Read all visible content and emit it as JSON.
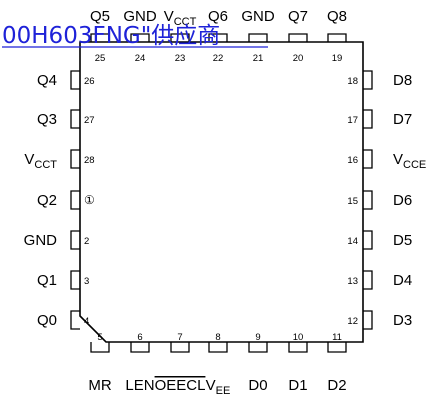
{
  "watermark": {
    "text": "00H603FNG\"供应商",
    "color": "#1e22d8"
  },
  "pin1_marker": "①",
  "pins": {
    "top": [
      {
        "num": "25",
        "name": "Q5"
      },
      {
        "num": "24",
        "name": "GND"
      },
      {
        "num": "23",
        "name": "V",
        "sub": "CCT"
      },
      {
        "num": "22",
        "name": "Q6"
      },
      {
        "num": "21",
        "name": "GND"
      },
      {
        "num": "20",
        "name": "Q7"
      },
      {
        "num": "19",
        "name": "Q8"
      }
    ],
    "left": [
      {
        "num": "26",
        "name": "Q4"
      },
      {
        "num": "27",
        "name": "Q3"
      },
      {
        "num": "28",
        "name": "V",
        "sub": "CCT"
      },
      {
        "num": "1",
        "name": "Q2"
      },
      {
        "num": "2",
        "name": "GND"
      },
      {
        "num": "3",
        "name": "Q1"
      },
      {
        "num": "4",
        "name": "Q0"
      }
    ],
    "right": [
      {
        "num": "18",
        "name": "D8"
      },
      {
        "num": "17",
        "name": "D7"
      },
      {
        "num": "16",
        "name": "V",
        "sub": "CCE"
      },
      {
        "num": "15",
        "name": "D6"
      },
      {
        "num": "14",
        "name": "D5"
      },
      {
        "num": "13",
        "name": "D4"
      },
      {
        "num": "12",
        "name": "D3"
      }
    ],
    "bottom": [
      {
        "num": "5",
        "name": "MR"
      },
      {
        "num": "6",
        "name": "LEN"
      },
      {
        "num": "7",
        "name": "OEECL",
        "overline": true
      },
      {
        "num": "8",
        "name": "V",
        "sub": "EE"
      },
      {
        "num": "9",
        "name": "D0"
      },
      {
        "num": "10",
        "name": "D1"
      },
      {
        "num": "11",
        "name": "D2"
      }
    ]
  }
}
